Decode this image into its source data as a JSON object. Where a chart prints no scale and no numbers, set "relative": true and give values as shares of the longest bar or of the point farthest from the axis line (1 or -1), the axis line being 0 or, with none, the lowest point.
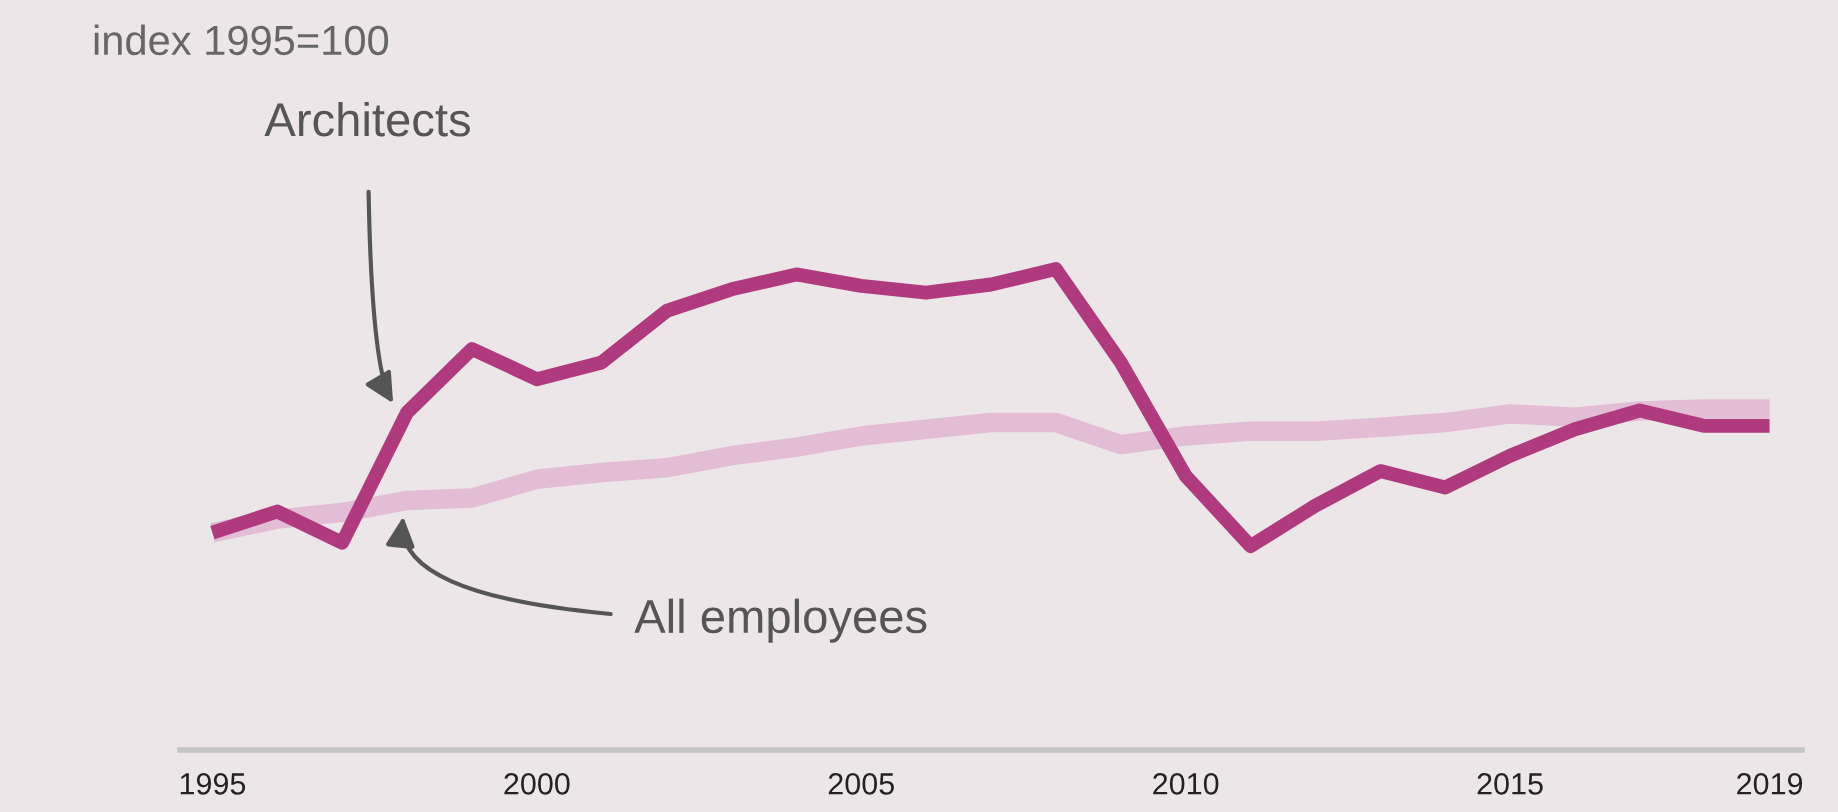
{
  "chart_data": {
    "type": "line",
    "relative": true,
    "annotations": [
      "index 1995=100"
    ],
    "x": [
      1995,
      1996,
      1997,
      1998,
      1999,
      2000,
      2001,
      2002,
      2003,
      2004,
      2005,
      2006,
      2007,
      2008,
      2009,
      2010,
      2011,
      2012,
      2013,
      2014,
      2015,
      2016,
      2017,
      2018,
      2019
    ],
    "xlim": [
      1994.5,
      2019.5
    ],
    "xticks": [
      1995,
      2000,
      2005,
      2010,
      2015,
      2019
    ],
    "series": [
      {
        "name": "All employees",
        "color": "#e3bcd5",
        "values": [
          0.452,
          0.48,
          0.494,
          0.519,
          0.524,
          0.563,
          0.577,
          0.587,
          0.612,
          0.63,
          0.653,
          0.667,
          0.681,
          0.681,
          0.635,
          0.653,
          0.663,
          0.663,
          0.671,
          0.681,
          0.699,
          0.692,
          0.705,
          0.709,
          0.709
        ]
      },
      {
        "name": "Architects",
        "color": "#b03a7e",
        "values": [
          0.452,
          0.496,
          0.431,
          0.702,
          0.834,
          0.771,
          0.806,
          0.913,
          0.958,
          0.989,
          0.965,
          0.951,
          0.968,
          1.0,
          0.806,
          0.57,
          0.424,
          0.508,
          0.58,
          0.546,
          0.612,
          0.667,
          0.706,
          0.674,
          0.674
        ]
      }
    ],
    "grid": false,
    "legend": false,
    "line_style": "solid",
    "marker": "none"
  }
}
